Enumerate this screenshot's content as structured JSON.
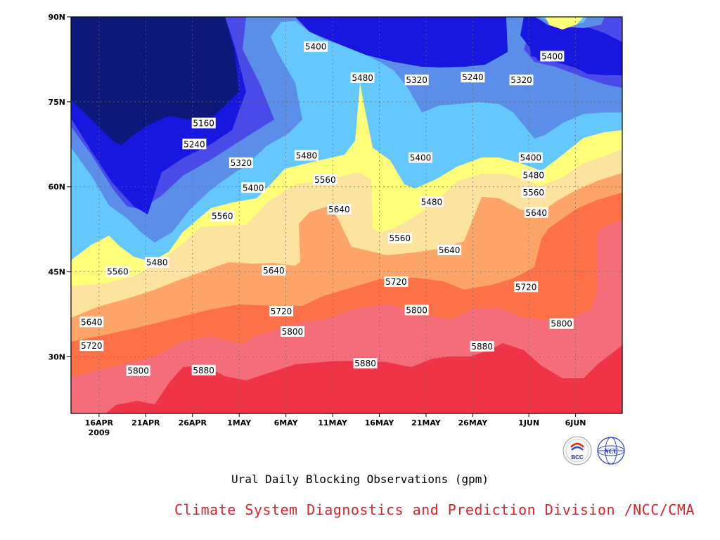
{
  "chart_data": {
    "type": "heatmap",
    "title": "Ural Daily Blocking Observations (gpm)",
    "y_axis": {
      "tick_labels": [
        "30N",
        "45N",
        "60N",
        "75N",
        "90N"
      ],
      "tick_values": [
        30,
        45,
        60,
        75,
        90
      ],
      "range": [
        20,
        90
      ]
    },
    "x_axis": {
      "tick_labels": [
        "16APR",
        "21APR",
        "26APR",
        "1MAY",
        "6MAY",
        "11MAY",
        "16MAY",
        "21MAY",
        "26MAY",
        "1JUN",
        "6JUN"
      ],
      "tick_values": [
        3,
        8,
        13,
        18,
        23,
        28,
        33,
        38,
        43,
        49,
        54
      ],
      "year_label": "2009",
      "range": [
        0,
        59
      ]
    },
    "grid": true,
    "levels": [
      5160,
      5240,
      5320,
      5400,
      5480,
      5560,
      5640,
      5720,
      5800,
      5880
    ],
    "fill_colors": [
      "#0d1878",
      "#1717e0",
      "#4a4ae8",
      "#5b8ee8",
      "#64c8ff",
      "#ffff7a",
      "#fde3a0",
      "#fda468",
      "#fd7048",
      "#f46d7a",
      "#f03448"
    ],
    "contour_labels": [
      {
        "value": "5160",
        "x": 14.2,
        "y": 71.2
      },
      {
        "value": "5240",
        "x": 13.2,
        "y": 67.5
      },
      {
        "value": "5320",
        "x": 18.2,
        "y": 64.2
      },
      {
        "value": "5400",
        "x": 19.5,
        "y": 59.8
      },
      {
        "value": "5480",
        "x": 25.2,
        "y": 65.5
      },
      {
        "value": "5560",
        "x": 27.2,
        "y": 61.2
      },
      {
        "value": "5400",
        "x": 26.2,
        "y": 84.7
      },
      {
        "value": "5480",
        "x": 31.2,
        "y": 79.2
      },
      {
        "value": "5320",
        "x": 37.0,
        "y": 78.8
      },
      {
        "value": "5240",
        "x": 43.0,
        "y": 79.3
      },
      {
        "value": "5320",
        "x": 48.2,
        "y": 78.8
      },
      {
        "value": "5400",
        "x": 51.5,
        "y": 83.0
      },
      {
        "value": "5400",
        "x": 37.4,
        "y": 65.1
      },
      {
        "value": "5480",
        "x": 38.6,
        "y": 57.3
      },
      {
        "value": "5640",
        "x": 28.7,
        "y": 56.0
      },
      {
        "value": "5560",
        "x": 35.2,
        "y": 50.9
      },
      {
        "value": "5640",
        "x": 40.5,
        "y": 48.8
      },
      {
        "value": "5400",
        "x": 49.2,
        "y": 65.1
      },
      {
        "value": "5480",
        "x": 49.5,
        "y": 62.0
      },
      {
        "value": "5560",
        "x": 49.5,
        "y": 59.0
      },
      {
        "value": "5640",
        "x": 49.8,
        "y": 55.4
      },
      {
        "value": "5560",
        "x": 16.2,
        "y": 54.8
      },
      {
        "value": "5480",
        "x": 9.2,
        "y": 46.6
      },
      {
        "value": "5560",
        "x": 5.0,
        "y": 45.0
      },
      {
        "value": "5640",
        "x": 21.7,
        "y": 45.2
      },
      {
        "value": "5720",
        "x": 34.8,
        "y": 43.2
      },
      {
        "value": "5720",
        "x": 48.7,
        "y": 42.3
      },
      {
        "value": "5720",
        "x": 22.5,
        "y": 38.0
      },
      {
        "value": "5800",
        "x": 37.0,
        "y": 38.2
      },
      {
        "value": "5800",
        "x": 52.5,
        "y": 35.8
      },
      {
        "value": "5640",
        "x": 2.2,
        "y": 36.1
      },
      {
        "value": "5720",
        "x": 2.2,
        "y": 31.9
      },
      {
        "value": "5800",
        "x": 7.2,
        "y": 27.5
      },
      {
        "value": "5880",
        "x": 14.2,
        "y": 27.6
      },
      {
        "value": "5800",
        "x": 23.7,
        "y": 34.4
      },
      {
        "value": "5880",
        "x": 31.5,
        "y": 28.8
      },
      {
        "value": "5880",
        "x": 44.0,
        "y": 31.8
      }
    ]
  },
  "caption": "Ural Daily Blocking Observations (gpm)",
  "credit": "Climate System Diagnostics and Prediction Division /NCC/CMA",
  "credit_color": "#e0202a",
  "logos": {
    "bcc_text": "BCC",
    "ncc_text": "NCC"
  }
}
